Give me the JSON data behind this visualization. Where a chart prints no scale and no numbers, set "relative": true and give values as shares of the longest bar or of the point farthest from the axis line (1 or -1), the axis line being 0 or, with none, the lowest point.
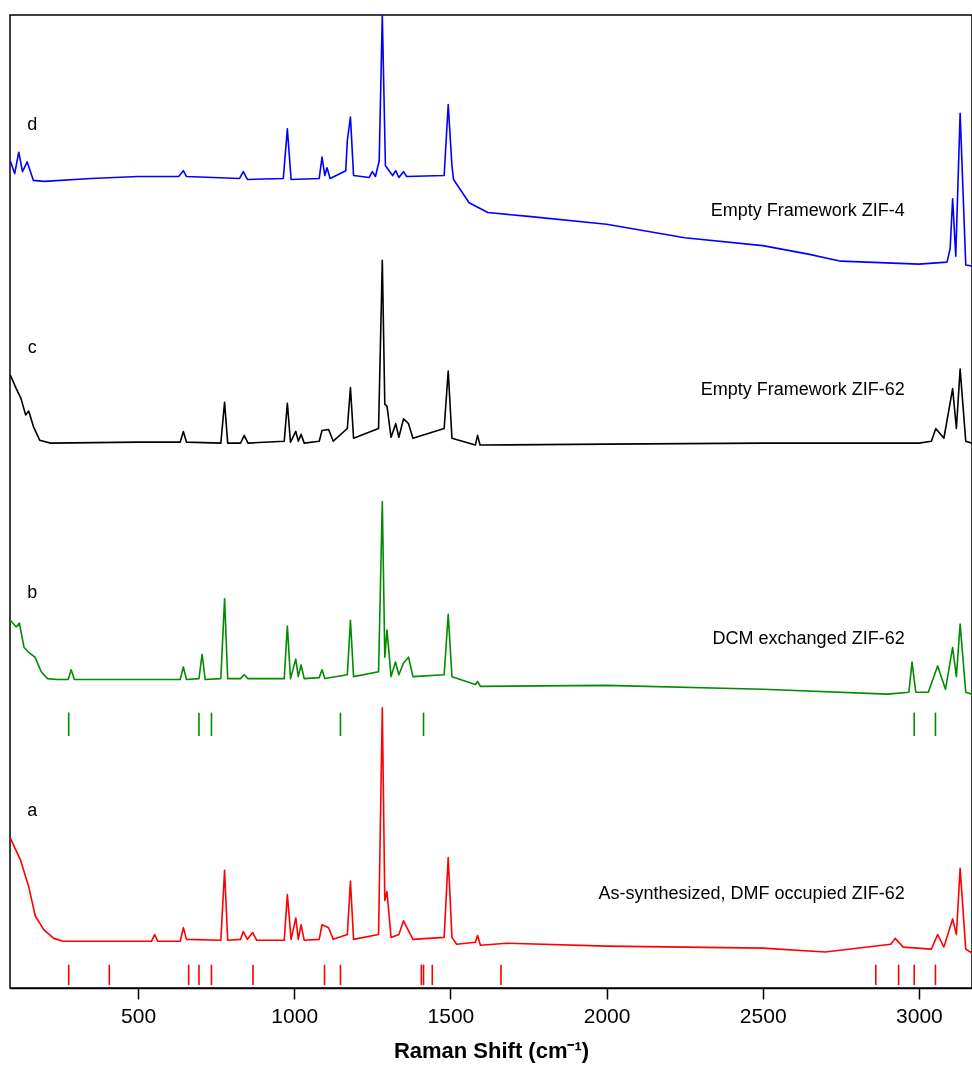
{
  "chart_data": {
    "type": "line",
    "relative": true,
    "xlabel": "Raman Shift (cm⁻¹)",
    "xlim": [
      90,
      3170
    ],
    "xticks": [
      500,
      1000,
      1500,
      2000,
      2500,
      3000
    ],
    "grid": false,
    "line_style": "solid",
    "marker": "none",
    "series": [
      {
        "name": "Empty Framework ZIF-4",
        "color": "#0000ff",
        "x": [
          91,
          105,
          118,
          130,
          145,
          165,
          200,
          350,
          500,
          630,
          645,
          655,
          825,
          837,
          850,
          965,
          978,
          990,
          1080,
          1089,
          1098,
          1105,
          1115,
          1165,
          1170,
          1180,
          1190,
          1240,
          1250,
          1260,
          1272,
          1282,
          1292,
          1315,
          1325,
          1335,
          1350,
          1360,
          1480,
          1493,
          1505,
          1510,
          1560,
          1620,
          1750,
          2000,
          2250,
          2500,
          2650,
          2750,
          3000,
          3090,
          3100,
          3108,
          3118,
          3132,
          3150,
          3170
        ],
        "values": [
          0.85,
          0.837,
          0.859,
          0.839,
          0.849,
          0.83,
          0.829,
          0.832,
          0.834,
          0.834,
          0.84,
          0.834,
          0.832,
          0.839,
          0.831,
          0.832,
          0.883,
          0.831,
          0.832,
          0.854,
          0.835,
          0.843,
          0.832,
          0.84,
          0.871,
          0.895,
          0.835,
          0.833,
          0.839,
          0.834,
          0.85,
          1.0,
          0.845,
          0.835,
          0.84,
          0.833,
          0.839,
          0.834,
          0.835,
          0.908,
          0.845,
          0.831,
          0.807,
          0.797,
          0.793,
          0.785,
          0.771,
          0.763,
          0.754,
          0.747,
          0.744,
          0.746,
          0.76,
          0.811,
          0.752,
          0.899,
          0.743,
          0.742
        ]
      },
      {
        "name": "Empty Framework ZIF-62",
        "color": "#000000",
        "x": [
          91,
          110,
          125,
          140,
          150,
          165,
          185,
          220,
          500,
          635,
          645,
          655,
          765,
          777,
          787,
          828,
          840,
          852,
          968,
          978,
          988,
          1005,
          1013,
          1022,
          1032,
          1080,
          1089,
          1110,
          1125,
          1170,
          1180,
          1190,
          1270,
          1282,
          1290,
          1297,
          1310,
          1325,
          1335,
          1350,
          1366,
          1380,
          1480,
          1493,
          1505,
          1580,
          1587,
          1595,
          2000,
          2500,
          3000,
          3040,
          3054,
          3080,
          3108,
          3120,
          3132,
          3150,
          3170
        ],
        "values": [
          0.63,
          0.616,
          0.606,
          0.589,
          0.593,
          0.577,
          0.563,
          0.56,
          0.561,
          0.561,
          0.572,
          0.561,
          0.56,
          0.602,
          0.56,
          0.56,
          0.568,
          0.56,
          0.562,
          0.601,
          0.561,
          0.572,
          0.562,
          0.569,
          0.56,
          0.562,
          0.573,
          0.574,
          0.562,
          0.575,
          0.617,
          0.565,
          0.575,
          0.748,
          0.6,
          0.598,
          0.566,
          0.58,
          0.566,
          0.585,
          0.58,
          0.565,
          0.575,
          0.634,
          0.565,
          0.558,
          0.568,
          0.558,
          0.559,
          0.56,
          0.56,
          0.562,
          0.575,
          0.565,
          0.616,
          0.575,
          0.636,
          0.562,
          0.56
        ]
      },
      {
        "name": "DCM exchanged ZIF-62",
        "color": "#008c00",
        "x": [
          91,
          110,
          120,
          135,
          150,
          170,
          190,
          210,
          240,
          276,
          286,
          296,
          500,
          635,
          645,
          655,
          695,
          705,
          715,
          765,
          777,
          787,
          828,
          840,
          852,
          968,
          978,
          988,
          1005,
          1013,
          1022,
          1032,
          1080,
          1089,
          1098,
          1170,
          1180,
          1190,
          1270,
          1282,
          1290,
          1297,
          1310,
          1324,
          1335,
          1350,
          1366,
          1380,
          1480,
          1493,
          1505,
          1580,
          1587,
          1596,
          2000,
          2500,
          2900,
          2968,
          2978,
          2990,
          3030,
          3060,
          3085,
          3108,
          3120,
          3132,
          3150,
          3170
        ],
        "values": [
          0.378,
          0.371,
          0.375,
          0.35,
          0.345,
          0.34,
          0.325,
          0.318,
          0.317,
          0.317,
          0.327,
          0.317,
          0.317,
          0.317,
          0.33,
          0.317,
          0.318,
          0.343,
          0.317,
          0.318,
          0.4,
          0.318,
          0.318,
          0.322,
          0.318,
          0.318,
          0.372,
          0.318,
          0.338,
          0.32,
          0.332,
          0.318,
          0.319,
          0.327,
          0.318,
          0.322,
          0.378,
          0.32,
          0.325,
          0.5,
          0.34,
          0.368,
          0.32,
          0.335,
          0.322,
          0.334,
          0.34,
          0.32,
          0.322,
          0.384,
          0.32,
          0.312,
          0.315,
          0.31,
          0.311,
          0.307,
          0.302,
          0.304,
          0.335,
          0.304,
          0.304,
          0.331,
          0.307,
          0.35,
          0.32,
          0.374,
          0.304,
          0.302
        ]
      },
      {
        "name": "As-synthesized, DMF occupied  ZIF-62",
        "color": "#ff0000",
        "x": [
          91,
          123,
          150,
          171,
          198,
          230,
          260,
          500,
          543,
          553,
          563,
          635,
          645,
          655,
          765,
          777,
          787,
          828,
          837,
          850,
          867,
          880,
          968,
          978,
          990,
          1005,
          1013,
          1022,
          1032,
          1080,
          1089,
          1110,
          1125,
          1170,
          1180,
          1190,
          1270,
          1282,
          1290,
          1297,
          1310,
          1335,
          1350,
          1380,
          1480,
          1493,
          1505,
          1520,
          1580,
          1587,
          1596,
          1681,
          2000,
          2500,
          2700,
          2910,
          2924,
          2950,
          3040,
          3060,
          3080,
          3108,
          3120,
          3132,
          3150,
          3170
        ],
        "values": [
          0.154,
          0.132,
          0.104,
          0.074,
          0.06,
          0.051,
          0.048,
          0.048,
          0.048,
          0.055,
          0.048,
          0.048,
          0.062,
          0.05,
          0.049,
          0.121,
          0.049,
          0.05,
          0.058,
          0.05,
          0.057,
          0.049,
          0.049,
          0.096,
          0.05,
          0.072,
          0.05,
          0.065,
          0.049,
          0.05,
          0.065,
          0.062,
          0.05,
          0.055,
          0.11,
          0.05,
          0.055,
          0.288,
          0.09,
          0.099,
          0.052,
          0.055,
          0.069,
          0.05,
          0.052,
          0.134,
          0.052,
          0.045,
          0.047,
          0.054,
          0.044,
          0.046,
          0.043,
          0.041,
          0.037,
          0.045,
          0.051,
          0.042,
          0.04,
          0.055,
          0.042,
          0.071,
          0.055,
          0.123,
          0.04,
          0.036
        ]
      },
      {
        "color": "#008c00",
        "x": [
          278,
          278,
          null,
          695,
          695,
          null,
          735,
          735,
          null,
          1148,
          1148,
          null,
          1414,
          1414,
          null,
          2985,
          2985,
          null,
          3053,
          3053
        ],
        "values": [
          0.259,
          0.283,
          null,
          0.259,
          0.283,
          null,
          0.259,
          0.283,
          null,
          0.259,
          0.283,
          null,
          0.259,
          0.283,
          null,
          0.259,
          0.283,
          null,
          0.259,
          0.283
        ]
      },
      {
        "color": "#ff0000",
        "x": [
          278,
          278,
          null,
          408,
          408,
          null,
          662,
          662,
          null,
          695,
          695,
          null,
          735,
          735,
          null,
          868,
          868,
          null,
          1097,
          1097,
          null,
          1148,
          1148,
          null,
          1407,
          1407,
          null,
          1414,
          1414,
          null,
          1442,
          1442,
          null,
          1662,
          1662,
          null,
          2862,
          2862,
          null,
          2935,
          2935,
          null,
          2985,
          2985,
          null,
          3053,
          3053
        ],
        "values": [
          0.003,
          0.024,
          null,
          0.003,
          0.024,
          null,
          0.003,
          0.024,
          null,
          0.003,
          0.024,
          null,
          0.003,
          0.024,
          null,
          0.003,
          0.024,
          null,
          0.003,
          0.024,
          null,
          0.003,
          0.024,
          null,
          0.003,
          0.024,
          null,
          0.003,
          0.024,
          null,
          0.003,
          0.024,
          null,
          0.003,
          0.024,
          null,
          0.003,
          0.024,
          null,
          0.003,
          0.024,
          null,
          0.003,
          0.024,
          null,
          0.003,
          0.024
        ]
      }
    ],
    "annotations": [
      "d",
      "c",
      "b",
      "a"
    ]
  }
}
